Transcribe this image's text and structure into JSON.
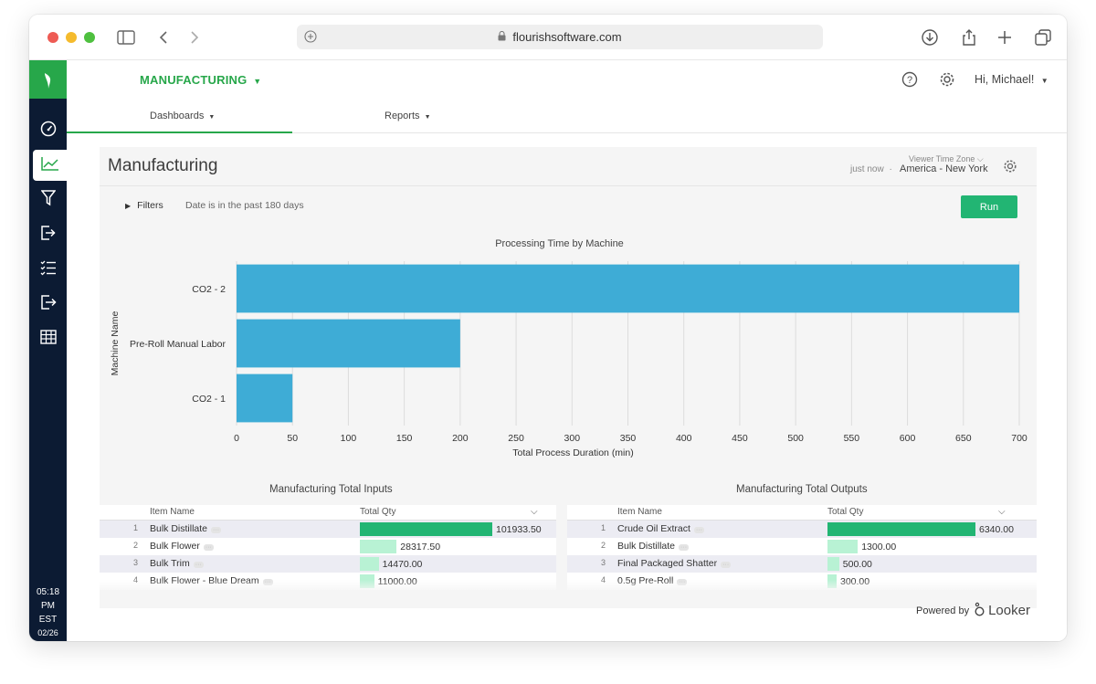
{
  "browser": {
    "url": "flourishsoftware.com"
  },
  "rail": {
    "items": [
      "speedometer-icon",
      "line-chart-icon",
      "filter-icon",
      "sign-in-icon",
      "checklist-icon",
      "sign-out-icon",
      "table-icon"
    ],
    "clock": {
      "time": "05:18",
      "ampm": "PM",
      "tz": "EST",
      "date": "02/26"
    }
  },
  "header": {
    "module": "MANUFACTURING",
    "user": "Hi, Michael!"
  },
  "subnav": {
    "dashboards": "Dashboards",
    "reports": "Reports"
  },
  "dashboard": {
    "title": "Manufacturing",
    "tz_label": "Viewer Time Zone",
    "updated": "just now",
    "timezone": "America - New York",
    "filters_label": "Filters",
    "filter_summary": "Date is in the past 180 days",
    "run_label": "Run"
  },
  "chart_data": {
    "type": "bar",
    "orientation": "horizontal",
    "title": "Processing Time by Machine",
    "xlabel": "Total Process Duration (min)",
    "ylabel": "Machine Name",
    "categories": [
      "CO2 - 2",
      "Pre-Roll Manual Labor",
      "CO2 - 1"
    ],
    "values": [
      700,
      200,
      50
    ],
    "xlim": [
      0,
      700
    ],
    "xticks": [
      0,
      50,
      100,
      150,
      200,
      250,
      300,
      350,
      400,
      450,
      500,
      550,
      600,
      650,
      700
    ],
    "grid": true,
    "color": "#3eacd6"
  },
  "inputs": {
    "title": "Manufacturing Total Inputs",
    "col_name": "Item Name",
    "col_qty": "Total Qty",
    "rows": [
      {
        "n": "1",
        "name": "Bulk Distillate",
        "qty": "101933.50",
        "value": 101933.5
      },
      {
        "n": "2",
        "name": "Bulk Flower",
        "qty": "28317.50",
        "value": 28317.5
      },
      {
        "n": "3",
        "name": "Bulk Trim",
        "qty": "14470.00",
        "value": 14470
      },
      {
        "n": "4",
        "name": "Bulk Flower - Blue Dream",
        "qty": "11000.00",
        "value": 11000
      }
    ]
  },
  "outputs": {
    "title": "Manufacturing Total Outputs",
    "col_name": "Item Name",
    "col_qty": "Total Qty",
    "rows": [
      {
        "n": "1",
        "name": "Crude Oil Extract",
        "qty": "6340.00",
        "value": 6340
      },
      {
        "n": "2",
        "name": "Bulk Distillate",
        "qty": "1300.00",
        "value": 1300
      },
      {
        "n": "3",
        "name": "Final Packaged Shatter",
        "qty": "500.00",
        "value": 500
      },
      {
        "n": "4",
        "name": "0.5g Pre-Roll",
        "qty": "300.00",
        "value": 300
      }
    ]
  },
  "footer": {
    "powered_by": "Powered by",
    "brand": "Looker"
  },
  "colors": {
    "accent": "#27a74a",
    "rail": "#0c1b33",
    "bar": "#3eacd6",
    "table_bar_strong": "#22b573",
    "table_bar_weak": "#b8f2d4"
  }
}
